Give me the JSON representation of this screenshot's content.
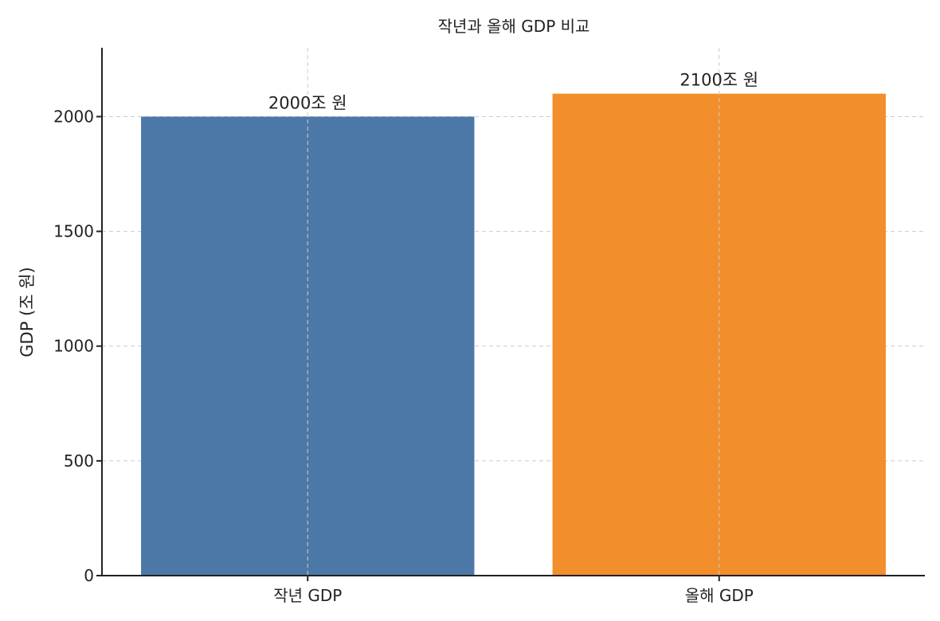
{
  "chart_data": {
    "type": "bar",
    "title": "작년과 올해 GDP 비교",
    "xlabel": "",
    "ylabel": "GDP (조 원)",
    "categories": [
      "작년 GDP",
      "올해 GDP"
    ],
    "values": [
      2000,
      2100
    ],
    "value_labels": [
      "2000조 원",
      "2100조 원"
    ],
    "colors": [
      "#4c78a8",
      "#f28e2b"
    ],
    "ylim": [
      0,
      2300
    ],
    "yticks": [
      0,
      500,
      1000,
      1500,
      2000
    ],
    "ytick_labels": [
      "0",
      "500",
      "1000",
      "1500",
      "2000"
    ],
    "grid": true
  }
}
